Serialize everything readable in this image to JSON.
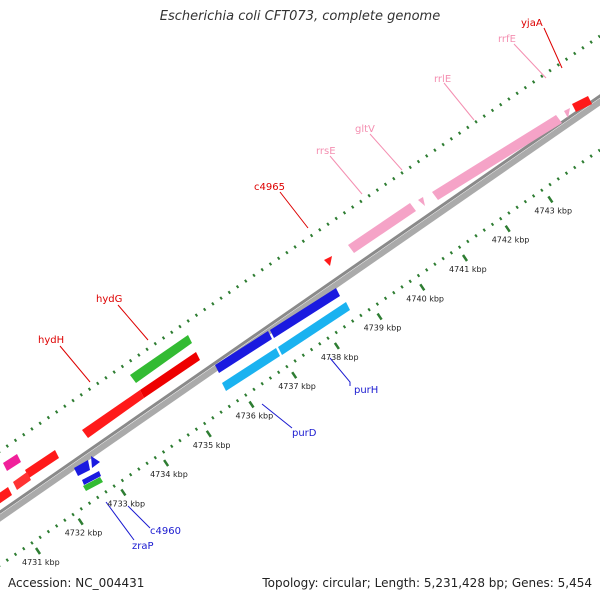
{
  "title": "Escherichia coli CFT073, complete genome",
  "footer": {
    "accession": "Accession: NC_004431",
    "summary": "Topology: circular; Length: 5,231,428 bp; Genes: 5,454"
  },
  "colors": {
    "backbone": "#8a8a8a",
    "tick_dot": "#2e7d32",
    "gene_red": "#ff1a1a",
    "gene_pink": "#f5a3c7",
    "gene_green": "#33bb33",
    "gene_blue": "#1a1ae0",
    "gene_cyan": "#1ab2f0",
    "gene_magenta": "#f0209a",
    "label_red": "#dd0000",
    "label_pink": "#f48fb1",
    "label_blue": "#1a1ad0"
  },
  "scale_ticks": [
    "4731 kbp",
    "4732 kbp",
    "4733 kbp",
    "4734 kbp",
    "4735 kbp",
    "4736 kbp",
    "4737 kbp",
    "4738 kbp",
    "4739 kbp",
    "4740 kbp",
    "4741 kbp",
    "4742 kbp",
    "4743 kbp"
  ],
  "gene_labels": {
    "top": [
      "yjaA",
      "rrfE",
      "rrlE",
      "gltV",
      "rrsE",
      "c4965",
      "hydG",
      "hydH"
    ],
    "bottom": [
      "purH",
      "purD",
      "c4960",
      "zraP"
    ]
  }
}
